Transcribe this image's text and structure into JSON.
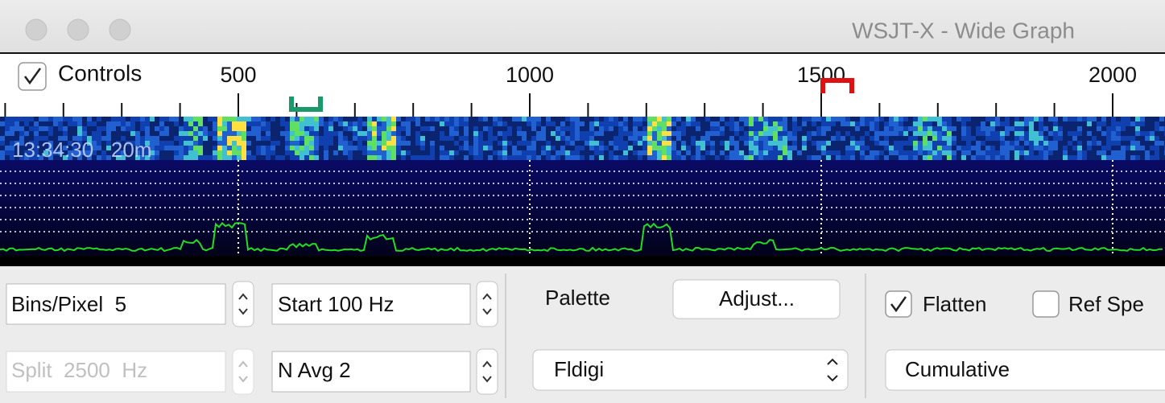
{
  "window": {
    "title": "WSJT-X - Wide Graph"
  },
  "header": {
    "controls_checkbox": "Controls"
  },
  "scale": {
    "labels": [
      500,
      1000,
      1500,
      2000
    ]
  },
  "waterfall": {
    "overlay": "13:34:30   20m"
  },
  "controls": {
    "bins_pixel": "Bins/Pixel  5",
    "start": "Start 100 Hz",
    "palette_label": "Palette",
    "adjust_button": "Adjust...",
    "flatten": "Flatten",
    "ref_spec": "Ref Spe",
    "split": "Split  2500  Hz",
    "n_avg": "N Avg 2",
    "palette_select": "Fldigi",
    "mode_select": "Cumulative"
  }
}
